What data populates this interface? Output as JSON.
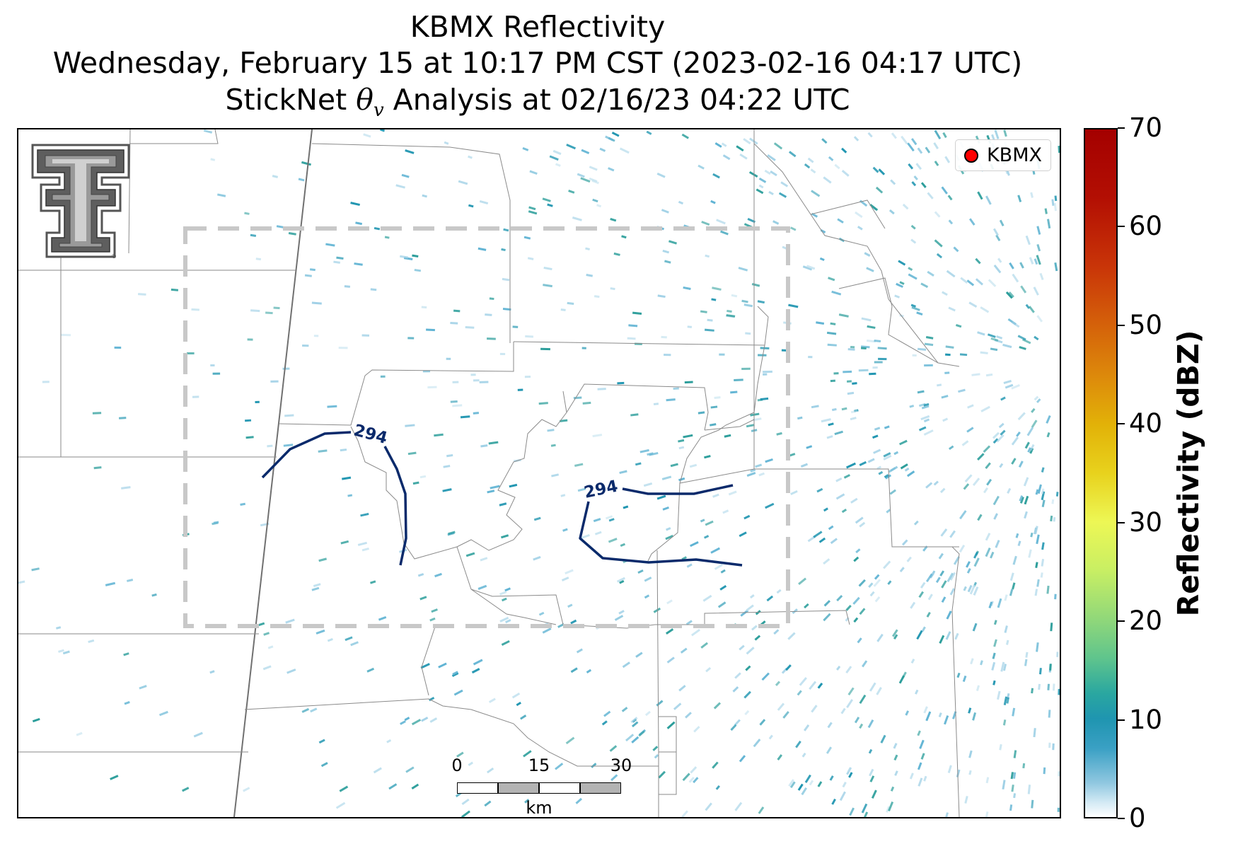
{
  "title": {
    "line1": "KBMX Reflectivity",
    "line2": "Wednesday, February 15 at 10:17 PM CST (2023-02-16 04:17 UTC)",
    "line3_pre": "StickNet ",
    "line3_symbol": "θ",
    "line3_sub": "v",
    "line3_post": " Analysis at 02/16/23 04:22 UTC"
  },
  "legend": {
    "label": "KBMX",
    "marker_color": "#ff0000"
  },
  "logo": {
    "name": "Texas Tech Double T logo"
  },
  "contours": [
    {
      "label": "294",
      "color": "#0a2a6b"
    },
    {
      "label": "294",
      "color": "#0a2a6b"
    }
  ],
  "scalebar": {
    "ticks": [
      "0",
      "15",
      "30"
    ],
    "unit": "km"
  },
  "colorbar": {
    "title": "Reflectivity (dBZ)",
    "min": 0,
    "max": 70,
    "ticks": [
      "0",
      "10",
      "20",
      "30",
      "40",
      "50",
      "60",
      "70"
    ]
  },
  "colors": {
    "contour": "#0a2a6b",
    "analysis_box": "#c8c8c8",
    "boundaries": "#8a8a8a",
    "echo_light": "#9fd0e6",
    "echo_mid": "#1f95b0",
    "echo_teal": "#2a9d9a"
  }
}
